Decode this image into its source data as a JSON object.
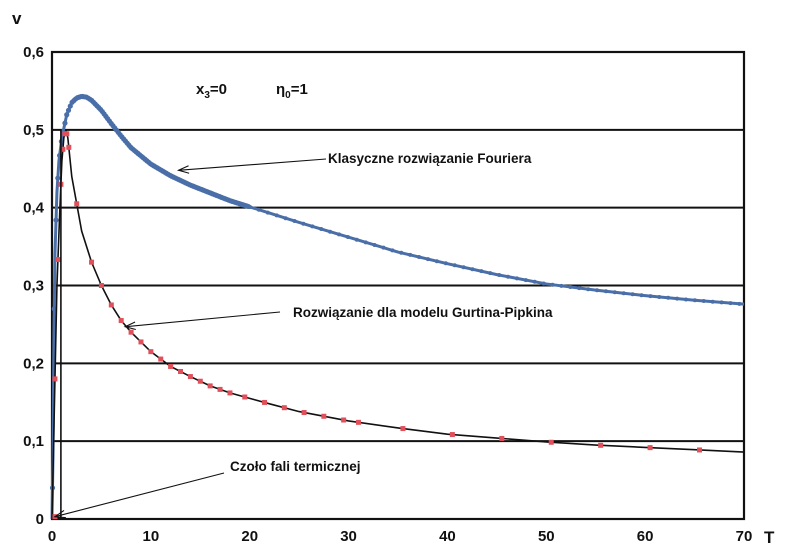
{
  "chart_data": {
    "type": "line",
    "xlabel": "T",
    "ylabel": "v",
    "xlim": [
      0,
      70
    ],
    "ylim": [
      0,
      0.6
    ],
    "x_ticks": [
      "0",
      "10",
      "20",
      "30",
      "40",
      "50",
      "60",
      "70"
    ],
    "y_ticks": [
      "0",
      "0,1",
      "0,2",
      "0,3",
      "0,4",
      "0,5",
      "0,6"
    ],
    "grid": "horizontal",
    "parameters": {
      "x3_base": "x",
      "x3_sub": "3",
      "x3_value": "=0",
      "eta_base": "η",
      "eta_sub": "0",
      "eta_value": "=1"
    },
    "series": [
      {
        "name": "Klasyczne rozwiązanie Fouriera",
        "color": "#4a6fa8",
        "marker": "dense-dots",
        "x": [
          0,
          0.1,
          0.2,
          0.3,
          0.5,
          0.7,
          1.0,
          1.5,
          2.0,
          2.5,
          3.0,
          3.5,
          4.0,
          5.0,
          6.0,
          7.0,
          8.0,
          10,
          12,
          14,
          16,
          18,
          20,
          22,
          25,
          30,
          35,
          40,
          45,
          50,
          55,
          60,
          65,
          70
        ],
        "y": [
          0,
          0.08,
          0.24,
          0.34,
          0.42,
          0.46,
          0.49,
          0.52,
          0.535,
          0.541,
          0.543,
          0.542,
          0.538,
          0.525,
          0.508,
          0.492,
          0.477,
          0.456,
          0.441,
          0.429,
          0.419,
          0.409,
          0.401,
          0.393,
          0.381,
          0.362,
          0.343,
          0.328,
          0.314,
          0.302,
          0.294,
          0.287,
          0.281,
          0.276
        ]
      },
      {
        "name": "Rozwiązanie dla modelu Gurtina-Pipkina",
        "color": "#111111",
        "marker": "red-squares",
        "marker_color": "#e0505a",
        "x": [
          0,
          0.5,
          0.8,
          1.0,
          1.2,
          1.4,
          1.6,
          2,
          3,
          4,
          5,
          6,
          7,
          8,
          10,
          12,
          14,
          16,
          18,
          20,
          22,
          25,
          30,
          35,
          40,
          45,
          50,
          55,
          60,
          65,
          70
        ],
        "y": [
          0,
          0.3,
          0.4,
          0.46,
          0.49,
          0.5,
          0.49,
          0.44,
          0.37,
          0.33,
          0.3,
          0.275,
          0.255,
          0.24,
          0.215,
          0.196,
          0.183,
          0.171,
          0.162,
          0.155,
          0.148,
          0.138,
          0.126,
          0.117,
          0.109,
          0.104,
          0.099,
          0.095,
          0.092,
          0.089,
          0.086
        ]
      }
    ],
    "annotations": [
      {
        "text": "Klasyczne rozwiązanie Fouriera",
        "arrow_to": [
          12.8,
          0.448
        ]
      },
      {
        "text": "Rozwiązanie dla modelu Gurtina-Pipkina",
        "arrow_to": [
          7.4,
          0.247
        ]
      },
      {
        "text": "Czoło fali termicznej",
        "arrow_to": [
          0.3,
          0.003
        ]
      }
    ]
  }
}
